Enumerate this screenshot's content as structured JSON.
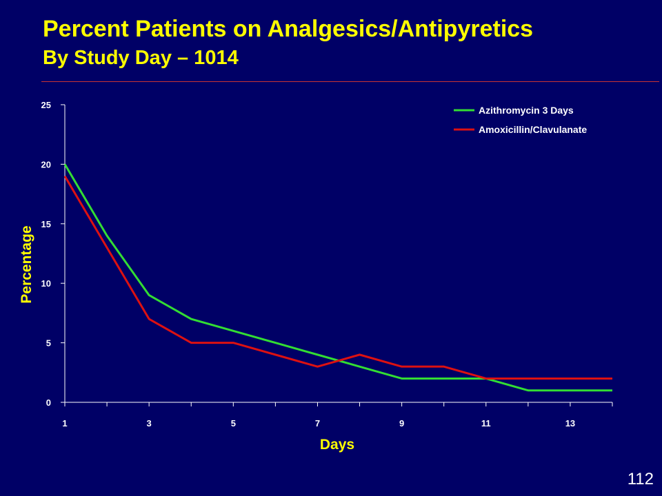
{
  "slide": {
    "title": "Percent Patients on Analgesics/Antipyretics",
    "subtitle": "By Study Day – 1014",
    "page_number": "112"
  },
  "colors": {
    "background": "#000066",
    "title": "#FFFF00",
    "axis": "#FFFFFF",
    "axis_label": "#FFFF00",
    "rule": "#CC3333"
  },
  "chart_data": {
    "type": "line",
    "xlabel": "Days",
    "ylabel": "Percentage",
    "xlim": [
      1,
      14
    ],
    "ylim": [
      0,
      25
    ],
    "xticks": [
      1,
      3,
      5,
      7,
      9,
      11,
      13
    ],
    "yticks": [
      0,
      5,
      10,
      15,
      20,
      25
    ],
    "grid": false,
    "legend_position": "top-right",
    "x": [
      1,
      2,
      3,
      4,
      5,
      6,
      7,
      8,
      9,
      10,
      11,
      12,
      13,
      14
    ],
    "series": [
      {
        "name": "Azithromycin 3 Days",
        "color": "#33DD33",
        "values": [
          20,
          14,
          9,
          7,
          6,
          5,
          4,
          3,
          2,
          2,
          2,
          1,
          1,
          1
        ]
      },
      {
        "name": "Amoxicillin/Clavulanate",
        "color": "#DD1111",
        "values": [
          19,
          13,
          7,
          5,
          5,
          4,
          3,
          4,
          3,
          3,
          2,
          2,
          2,
          2
        ]
      }
    ]
  }
}
